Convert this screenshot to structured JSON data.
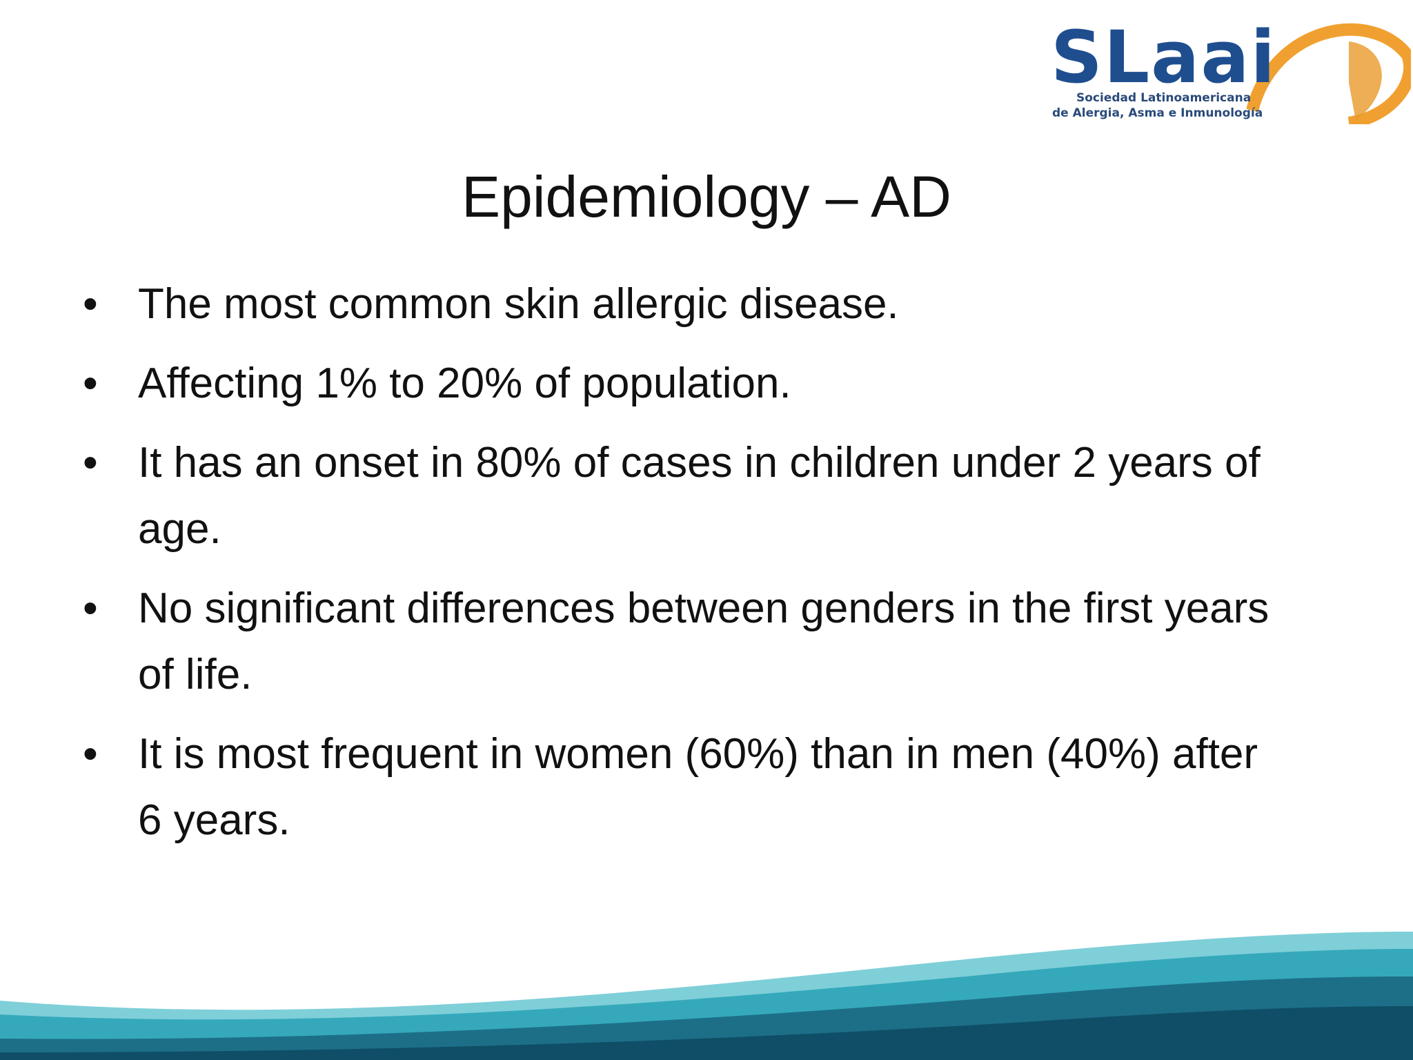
{
  "logo": {
    "name": "SLaai",
    "subtitle": [
      "Sociedad Latinoamericana",
      "de Alergia, Asma e Inmunología"
    ]
  },
  "title": "Epidemiology – AD",
  "bullets": [
    "The most common skin allergic disease.",
    "Affecting 1% to 20% of population.",
    "It has an onset in 80% of cases in children under 2 years of age.",
    "No significant differences between genders in the first years of life.",
    "It is most frequent in women (60%) than in men (40%) after 6 years."
  ]
}
